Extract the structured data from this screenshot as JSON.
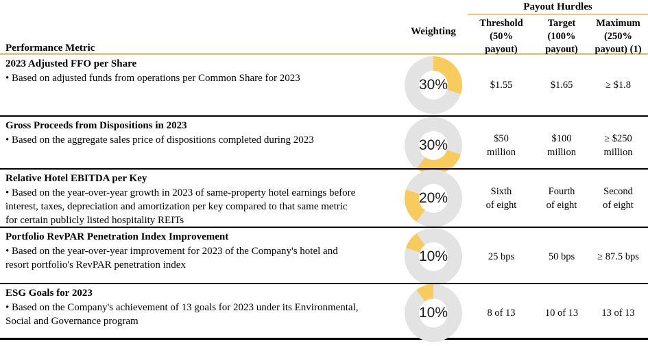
{
  "table": {
    "header": {
      "performance_metric": "Performance Metric",
      "weighting": "Weighting",
      "payout_hurdles": "Payout Hurdles",
      "threshold": "Threshold\n(50%\npayout)",
      "target": "Target\n(100%\npayout)",
      "maximum": "Maximum\n(250%\npayout) (1)"
    },
    "rows": [
      {
        "title": "2023 Adjusted FFO per Share",
        "description": "• Based on adjusted funds from operations per Common Share for 2023",
        "weighting_label": "30%",
        "weighting_percent": 30,
        "arc_start_deg": 0,
        "arc_end_deg": 108,
        "threshold": "$1.55",
        "target": "$1.65",
        "maximum": "≥ $1.8"
      },
      {
        "title": "Gross Proceeds from Dispositions in 2023",
        "description": "• Based on the aggregate sales price of dispositions completed during 2023",
        "weighting_label": "30%",
        "weighting_percent": 30,
        "arc_start_deg": 108,
        "arc_end_deg": 216,
        "threshold": "$50\nmillion",
        "target": "$100\nmillion",
        "maximum": "≥ $250\nmillion"
      },
      {
        "title": "Relative Hotel EBITDA per Key",
        "description": "• Based on the year-over-year growth in 2023 of same-property hotel earnings before\ninterest, taxes, depreciation and amortization per key compared to that same metric\nfor certain publicly listed hospitality REITs",
        "weighting_label": "20%",
        "weighting_percent": 20,
        "arc_start_deg": 216,
        "arc_end_deg": 288,
        "threshold": "Sixth\nof eight",
        "target": "Fourth\nof eight",
        "maximum": "Second\nof eight"
      },
      {
        "title": "Portfolio RevPAR Penetration Index Improvement",
        "description": "• Based on the year-over-year improvement for 2023 of the Company's hotel and\nresort portfolio's RevPAR penetration index",
        "weighting_label": "10%",
        "weighting_percent": 10,
        "arc_start_deg": 288,
        "arc_end_deg": 324,
        "threshold": "25 bps",
        "target": "50 bps",
        "maximum": "≥ 87.5 bps"
      },
      {
        "title": "ESG Goals for 2023",
        "description": "• Based on the Company's achievement of 13 goals for 2023 under its Environmental,\nSocial and Governance program",
        "weighting_label": "10%",
        "weighting_percent": 10,
        "arc_start_deg": 324,
        "arc_end_deg": 360,
        "threshold": "8 of 13",
        "target": "10 of 13",
        "maximum": "13 of 13"
      }
    ]
  },
  "colors": {
    "donut_fill": "#F8CB5F",
    "donut_track": "#E3E3E3",
    "gold_rule": "#E8C974",
    "row_rule": "#000000"
  }
}
